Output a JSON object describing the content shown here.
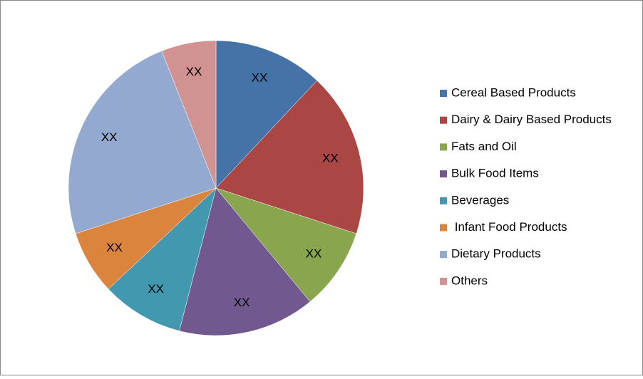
{
  "chart_data": {
    "type": "pie",
    "categories": [
      "Cereal Based Products",
      "Dairy & Dairy Based Products",
      "Fats and Oil",
      "Bulk Food Items",
      "Beverages",
      " Infant Food Products",
      "Dietary Products",
      "Others"
    ],
    "values": [
      12,
      18,
      9,
      15,
      9,
      7,
      24,
      6
    ],
    "value_labels": [
      "XX",
      "XX",
      "XX",
      "XX",
      "XX",
      "XX",
      "XX",
      "XX"
    ],
    "colors": [
      "#4572a7",
      "#aa4643",
      "#89a54e",
      "#71588f",
      "#4198af",
      "#db843d",
      "#93a9cf",
      "#d19392"
    ],
    "legend": "right"
  }
}
